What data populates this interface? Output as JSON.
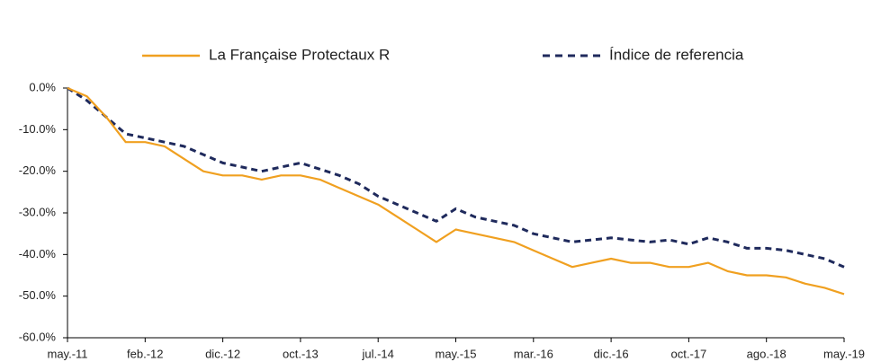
{
  "chart_data": {
    "type": "line",
    "x": [
      0,
      0.25,
      0.5,
      0.75,
      1,
      1.25,
      1.5,
      1.75,
      2,
      2.25,
      2.5,
      2.75,
      3,
      3.25,
      3.5,
      3.75,
      4,
      4.25,
      4.5,
      4.75,
      5,
      5.25,
      5.5,
      5.75,
      6,
      6.25,
      6.5,
      6.75,
      7,
      7.25,
      7.5,
      7.75,
      8,
      8.25,
      8.5,
      8.75,
      9,
      9.25,
      9.5,
      9.75,
      10
    ],
    "series": [
      {
        "name": "La Française Protectaux R",
        "color": "#f0a020",
        "dash": false,
        "values": [
          0,
          -2,
          -7,
          -13,
          -13,
          -14,
          -17,
          -20,
          -21,
          -21,
          -22,
          -21,
          -21,
          -22,
          -24,
          -26,
          -28,
          -31,
          -34,
          -37,
          -34,
          -35,
          -36,
          -37,
          -39,
          -41,
          -43,
          -42,
          -41,
          -42,
          -42,
          -43,
          -43,
          -42,
          -44,
          -45,
          -45,
          -45.5,
          -47,
          -48,
          -49.5
        ]
      },
      {
        "name": "Índice de referencia",
        "color": "#1f2a5c",
        "dash": true,
        "values": [
          0,
          -3,
          -7,
          -11,
          -12,
          -13,
          -14,
          -16,
          -18,
          -19,
          -20,
          -19,
          -18,
          -19.5,
          -21,
          -23,
          -26,
          -28,
          -30,
          -32,
          -29,
          -31,
          -32,
          -33,
          -35,
          -36,
          -37,
          -36.5,
          -36,
          -36.5,
          -37,
          -36.5,
          -37.5,
          -36,
          -37,
          -38.5,
          -38.5,
          -39,
          -40,
          -41,
          -43
        ]
      }
    ],
    "xlim": [
      0,
      10
    ],
    "xticks": [
      {
        "value": 0,
        "label": "may.-11"
      },
      {
        "value": 1,
        "label": "feb.-12"
      },
      {
        "value": 2,
        "label": "dic.-12"
      },
      {
        "value": 3,
        "label": "oct.-13"
      },
      {
        "value": 4,
        "label": "jul.-14"
      },
      {
        "value": 5,
        "label": "may.-15"
      },
      {
        "value": 6,
        "label": "mar.-16"
      },
      {
        "value": 7,
        "label": "dic.-16"
      },
      {
        "value": 8,
        "label": "oct.-17"
      },
      {
        "value": 9,
        "label": "ago.-18"
      },
      {
        "value": 10,
        "label": "may.-19"
      }
    ],
    "ylim": [
      -60,
      0
    ],
    "yticks": [
      {
        "value": 0,
        "label": "0.0%"
      },
      {
        "value": -10,
        "label": "-10.0%"
      },
      {
        "value": -20,
        "label": "-20.0%"
      },
      {
        "value": -30,
        "label": "-30.0%"
      },
      {
        "value": -40,
        "label": "-40.0%"
      },
      {
        "value": -50,
        "label": "-50.0%"
      },
      {
        "value": -60,
        "label": "-60.0%"
      }
    ],
    "grid": false
  }
}
